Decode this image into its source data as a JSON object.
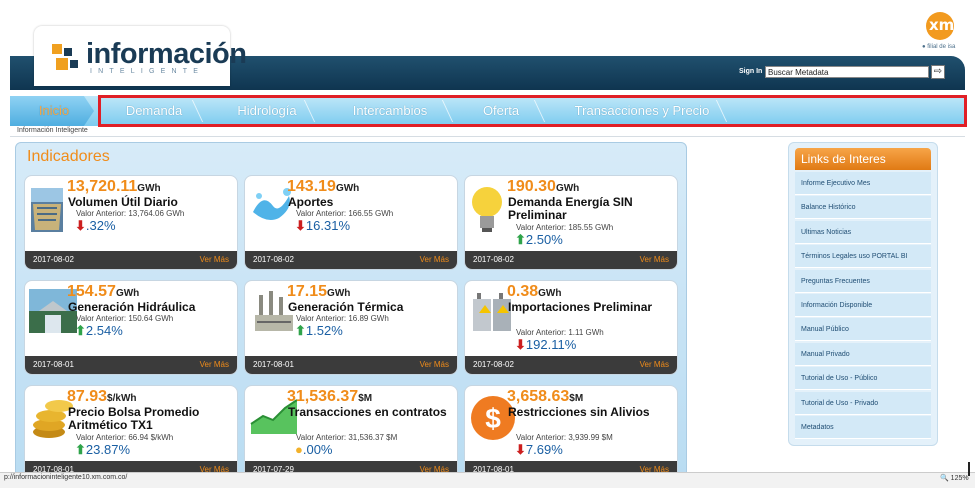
{
  "header": {
    "logo_text": "información",
    "logo_sub": "INTELIGENTE",
    "xm_logo": "xm",
    "xm_tagline": "filial de isa",
    "signin_label": "Sign In",
    "search_value": "Buscar Metadata"
  },
  "nav": {
    "items": [
      "Inicio",
      "Demanda",
      "Hidrología",
      "Intercambios",
      "Oferta",
      "Transacciones y Precio"
    ]
  },
  "breadcrumb": "Información Inteligente",
  "indicators": {
    "title": "Indicadores",
    "more_label": "Ver Más",
    "cards": [
      {
        "value": "13,720.11",
        "unit": "GWh",
        "title": "Volumen Útil Diario",
        "prev": "Valor Anterior: 13,764.06 GWh",
        "pct": ".32%",
        "trend": "down",
        "date": "2017-08-02",
        "icon": "dam-icon"
      },
      {
        "value": "143.19",
        "unit": "GWh",
        "title": "Aportes",
        "prev": "Valor Anterior: 166.55 GWh",
        "pct": "16.31%",
        "trend": "down",
        "date": "2017-08-02",
        "icon": "water-splash-icon"
      },
      {
        "value": "190.30",
        "unit": "GWh",
        "title": "Demanda Energía SIN Preliminar",
        "prev": "Valor Anterior: 185.55 GWh",
        "pct": "2.50%",
        "trend": "up",
        "date": "2017-08-02",
        "icon": "lightbulb-icon"
      },
      {
        "value": "154.57",
        "unit": "GWh",
        "title": "Generación Hidráulica",
        "prev": "Valor Anterior: 150.64 GWh",
        "pct": "2.54%",
        "trend": "up",
        "date": "2017-08-01",
        "icon": "hydro-plant-icon"
      },
      {
        "value": "17.15",
        "unit": "GWh",
        "title": "Generación Térmica",
        "prev": "Valor Anterior: 16.89 GWh",
        "pct": "1.52%",
        "trend": "up",
        "date": "2017-08-01",
        "icon": "thermal-plant-icon"
      },
      {
        "value": "0.38",
        "unit": "GWh",
        "title": "Importaciones Preliminar",
        "prev": "Valor Anterior: 1.11 GWh",
        "pct": "192.11%",
        "trend": "down",
        "date": "2017-08-02",
        "icon": "transformer-icon"
      },
      {
        "value": "87.93",
        "unit": "$/kWh",
        "title": "Precio Bolsa Promedio Aritmético TX1",
        "prev": "Valor Anterior: 66.94 $/kWh",
        "pct": "23.87%",
        "trend": "up",
        "date": "2017-08-01",
        "icon": "coins-icon"
      },
      {
        "value": "31,536.37",
        "unit": "$M",
        "title": "Transacciones en contratos",
        "prev": "Valor Anterior: 31,536.37 $M",
        "pct": ".00%",
        "trend": "neutral",
        "date": "2017-07-29",
        "icon": "growth-chart-icon"
      },
      {
        "value": "3,658.63",
        "unit": "$M",
        "title": "Restricciones sin Alivios",
        "prev": "Valor Anterior: 3,939.99 $M",
        "pct": "7.69%",
        "trend": "down",
        "date": "2017-08-01",
        "icon": "dollar-coin-icon"
      }
    ]
  },
  "links": {
    "title": "Links de Interes",
    "items": [
      "Informe Ejecutivo Mes",
      "Balance Histórico",
      "Ultimas Noticias",
      "Términos Legales uso PORTAL BI",
      "Preguntas Frecuentes",
      "Información Disponible",
      "Manual Público",
      "Manual Privado",
      "Tutorial de Uso - Público",
      "Tutorial de Uso - Privado",
      "Metadatos"
    ]
  },
  "statusbar": {
    "url": "p://informacioninteligente10.xm.com.co/",
    "zoom": "125%"
  },
  "colors": {
    "accent": "#f08c1a",
    "header_dark": "#1a3b55",
    "nav_light": "#7ccbef",
    "highlight": "#e01f26",
    "down": "#cc1f1f",
    "up": "#2fa34a"
  }
}
